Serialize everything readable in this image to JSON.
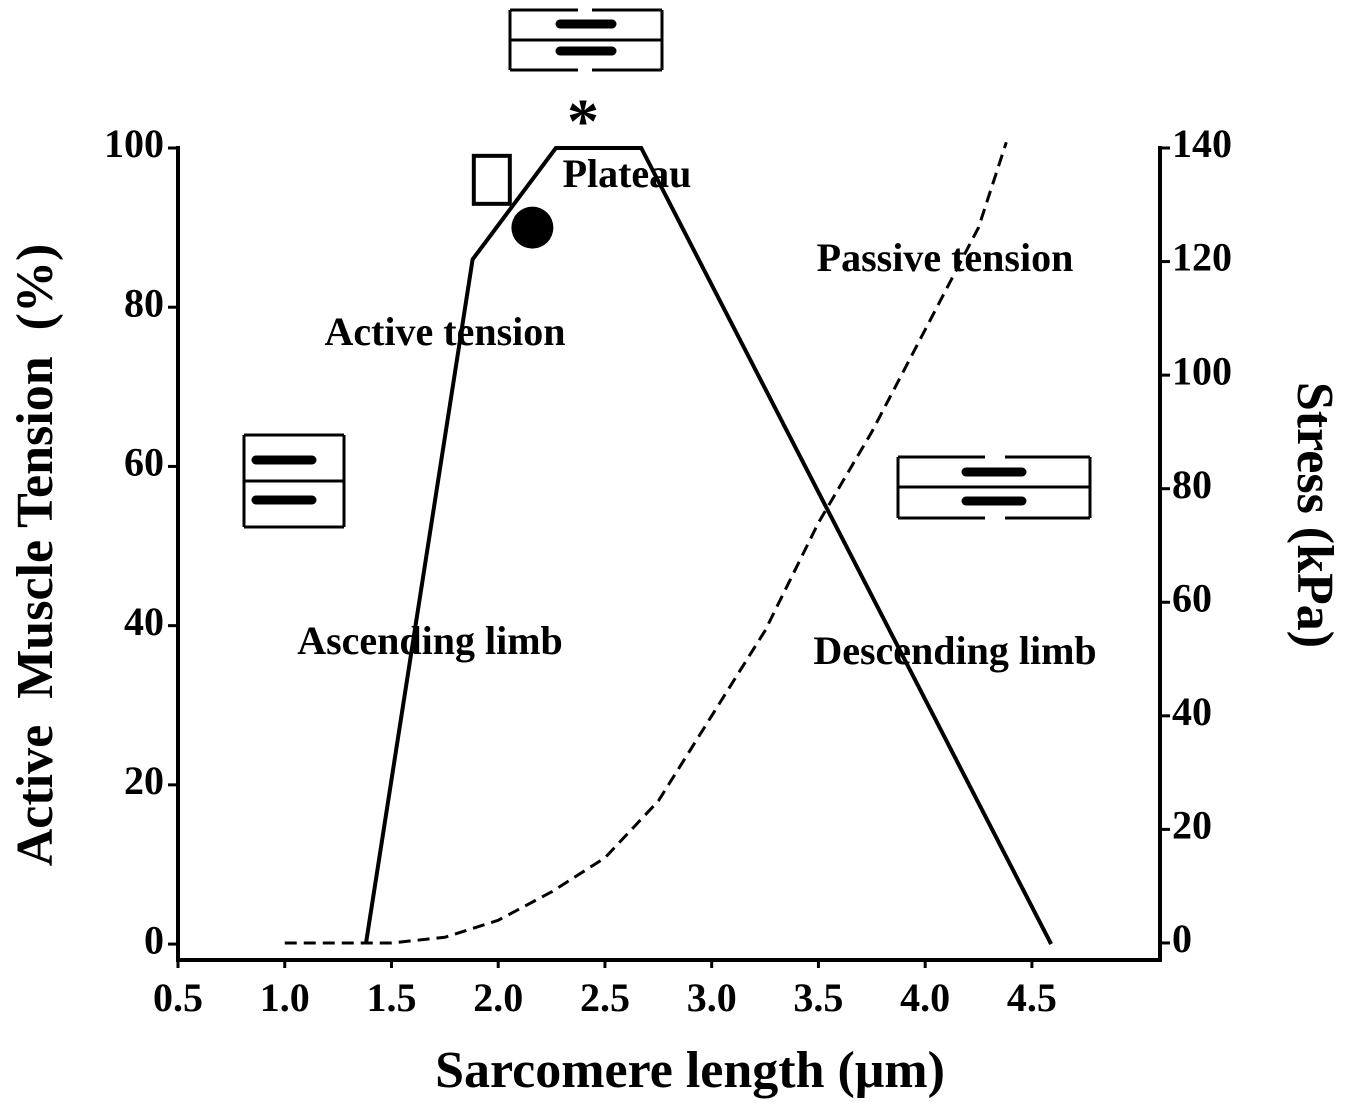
{
  "chart_data": {
    "type": "line",
    "xlabel": "Sarcomere length (μm)",
    "ylabel": "Active  Muscle Tension  (%)",
    "y2label": "Stress (kPa)",
    "xlim": [
      0.5,
      5.1
    ],
    "xticks": [
      0.5,
      {
        "value": 1,
        "label": "1.0"
      },
      1.5,
      {
        "value": 2,
        "label": "2.0"
      },
      2.5,
      {
        "value": 3,
        "label": "3.0"
      },
      3.5,
      {
        "value": 4,
        "label": "4.0"
      },
      4.5
    ],
    "ylim": [
      -2,
      100
    ],
    "yticks": [
      0,
      20,
      40,
      60,
      80,
      100
    ],
    "y2lim": [
      -3,
      140
    ],
    "y2ticks": [
      0,
      20,
      40,
      60,
      80,
      100,
      120,
      140
    ],
    "series": [
      {
        "name": "Active tension",
        "color": "#000000",
        "x": [
          1.38,
          1.88,
          2.27,
          2.67,
          4.59
        ],
        "values": [
          0,
          86,
          100,
          100,
          0
        ]
      },
      {
        "name": "Passive tension",
        "color": "#000000",
        "axis": "y2",
        "dashed": true,
        "x": [
          1.0,
          1.25,
          1.5,
          1.75,
          2.0,
          2.25,
          2.5,
          2.75,
          3.0,
          3.25,
          3.5,
          3.75,
          4.0,
          4.25,
          4.38
        ],
        "values": [
          0,
          0,
          0,
          1,
          4,
          9,
          15,
          25,
          40,
          55,
          74,
          90,
          108,
          126,
          141
        ]
      }
    ],
    "points": [
      {
        "shape": "square",
        "x": 1.97,
        "y": 96
      },
      {
        "shape": "circle",
        "x": 2.16,
        "y": 90
      }
    ],
    "annotations": [
      "Plateau",
      "Ascending limb",
      "Descending limb",
      "*"
    ]
  }
}
